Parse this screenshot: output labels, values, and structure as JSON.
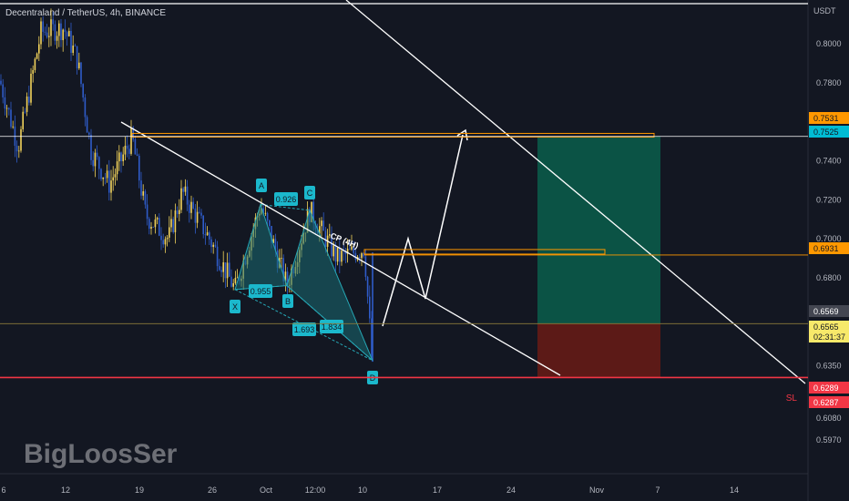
{
  "header": {
    "title": "Decentraland / TetherUS, 4h, BINANCE"
  },
  "watermark": "BigLoosSer",
  "colors": {
    "background": "#131722",
    "bull": "#f2d35b",
    "bear": "#2f5cc9",
    "pattern_fill": "#1a6b72",
    "pattern_label_bg": "#1bb8cc",
    "target_zone": "#0b5345",
    "stop_zone": "#5c1a17",
    "orange_line": "#ff9800",
    "red_line": "#f23645",
    "cyan_badge": "#00bcd4"
  },
  "chart_data": {
    "type": "candlestick",
    "symbol": "Decentraland / TetherUS",
    "interval": "4h",
    "exchange": "BINANCE",
    "currency": "USDT",
    "y_ticks": [
      0.8,
      0.78,
      0.74,
      0.72,
      0.7,
      0.68,
      0.635,
      0.608,
      0.597
    ],
    "y_tick_labels": [
      "0.8000",
      "0.7800",
      "0.7400",
      "0.7200",
      "0.7000",
      "0.6800",
      "0.6350",
      "0.6080",
      "0.5970"
    ],
    "x_tick_labels": [
      "6",
      "12",
      "19",
      "26",
      "Oct",
      "12:00",
      "10",
      "17",
      "24",
      "Nov",
      "7",
      "14"
    ],
    "price_badges": [
      {
        "label": "0.7531",
        "value": 0.7531,
        "style": "orange"
      },
      {
        "label": "0.7525",
        "value": 0.7525,
        "style": "cyan"
      },
      {
        "label": "0.6931",
        "value": 0.6931,
        "style": "orange"
      },
      {
        "label": "0.6569",
        "value": 0.6569,
        "style": "gray"
      },
      {
        "label": "0.6565",
        "value": 0.6565,
        "style": "yellow",
        "sub": "02:31:37"
      },
      {
        "label": "0.6289",
        "value": 0.6289,
        "style": "red"
      },
      {
        "label": "0.6287",
        "value": 0.6287,
        "style": "red"
      }
    ],
    "levels": [
      {
        "name": "target",
        "value": 0.7531
      },
      {
        "name": "entry",
        "value": 0.6931
      },
      {
        "name": "stop",
        "value": 0.6289
      }
    ],
    "pattern": {
      "name": "Cypher",
      "points": [
        {
          "label": "X",
          "value": 0.674
        },
        {
          "label": "A",
          "value": 0.7176
        },
        {
          "label": "B",
          "value": 0.676
        },
        {
          "label": "C",
          "value": 0.7146
        },
        {
          "label": "D",
          "value": 0.6376
        }
      ],
      "ratios": [
        "0.926",
        "0.955",
        "1.693",
        "1.834"
      ]
    },
    "annotations": [
      "CP (4H)",
      "SL"
    ],
    "grid": false
  }
}
